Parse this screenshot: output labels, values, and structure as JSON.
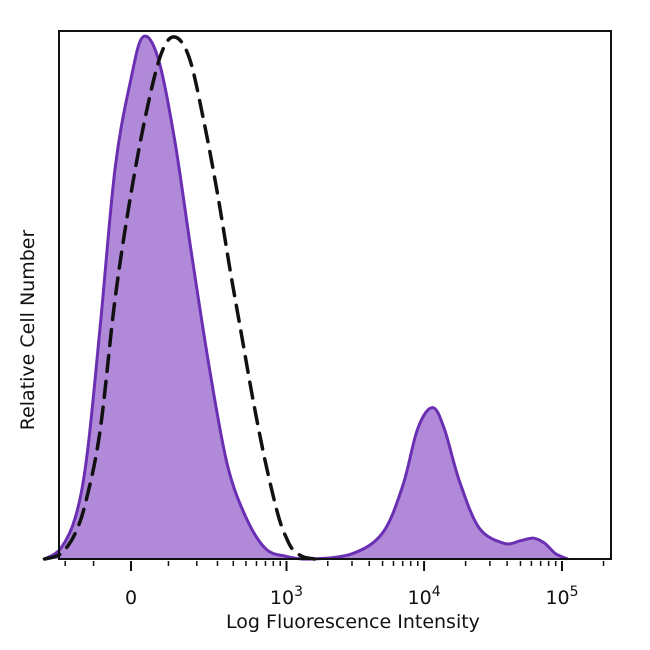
{
  "chart_data": {
    "type": "area",
    "xlabel": "Log Fluorescence Intensity",
    "ylabel": "Relative Cell Number",
    "x_scale": "biexponential",
    "x_ticks": [
      {
        "value": 0,
        "base": "0",
        "exp": ""
      },
      {
        "value": 1000,
        "base": "10",
        "exp": "3"
      },
      {
        "value": 10000,
        "base": "10",
        "exp": "4"
      },
      {
        "value": 100000,
        "base": "10",
        "exp": "5"
      }
    ],
    "ylim": [
      0,
      100
    ],
    "grid": false,
    "series": [
      {
        "style": "filled",
        "color": "#6b2fb3",
        "fill": "#b08ad8",
        "points": [
          [
            -300,
            0
          ],
          [
            -220,
            2
          ],
          [
            -160,
            8
          ],
          [
            -120,
            20
          ],
          [
            -80,
            45
          ],
          [
            -40,
            75
          ],
          [
            0,
            92
          ],
          [
            30,
            100
          ],
          [
            70,
            96
          ],
          [
            120,
            80
          ],
          [
            180,
            58
          ],
          [
            260,
            36
          ],
          [
            360,
            18
          ],
          [
            500,
            8
          ],
          [
            700,
            2
          ],
          [
            1000,
            0.5
          ],
          [
            1500,
            0
          ],
          [
            3000,
            1
          ],
          [
            5000,
            5
          ],
          [
            7000,
            14
          ],
          [
            9000,
            25
          ],
          [
            11500,
            29
          ],
          [
            14000,
            25
          ],
          [
            18000,
            15
          ],
          [
            25000,
            6
          ],
          [
            38000,
            3
          ],
          [
            50000,
            3.5
          ],
          [
            62000,
            4
          ],
          [
            75000,
            3
          ],
          [
            90000,
            1
          ],
          [
            110000,
            0
          ]
        ]
      },
      {
        "style": "dashed",
        "color": "#111111",
        "points": [
          [
            -300,
            0
          ],
          [
            -220,
            1
          ],
          [
            -160,
            5
          ],
          [
            -120,
            12
          ],
          [
            -80,
            25
          ],
          [
            -40,
            50
          ],
          [
            0,
            70
          ],
          [
            40,
            86
          ],
          [
            80,
            97
          ],
          [
            120,
            100
          ],
          [
            170,
            96
          ],
          [
            230,
            84
          ],
          [
            300,
            70
          ],
          [
            380,
            55
          ],
          [
            470,
            42
          ],
          [
            570,
            30
          ],
          [
            680,
            20
          ],
          [
            800,
            12
          ],
          [
            900,
            7
          ],
          [
            1000,
            4
          ],
          [
            1100,
            2
          ],
          [
            1300,
            0.5
          ],
          [
            1600,
            0
          ]
        ]
      }
    ]
  }
}
